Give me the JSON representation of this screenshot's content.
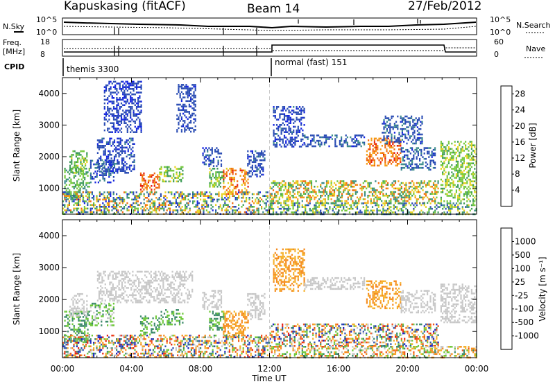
{
  "header": {
    "station": "Kapuskasing (fitACF)",
    "beam": "Beam 14",
    "date": "27/Feb/2012"
  },
  "status_panels": {
    "nsky_label": "N.Sky",
    "nsearch_label": "N.Search",
    "freq_label_1": "Freq.",
    "freq_label_2": "[MHz]",
    "nave_label": "Nave",
    "cpid_label": "CPID",
    "noise_ticks": [
      "10^5",
      "10^0"
    ],
    "freq_ticks": [
      "18",
      "8"
    ],
    "nave_ticks": [
      "60",
      "0"
    ],
    "cpid_modes": [
      {
        "name": "themis 3300",
        "start_hour": 0
      },
      {
        "name": "normal (fast) 151",
        "start_hour": 12
      }
    ]
  },
  "colors": {
    "power": [
      "#1424e0",
      "#2a4cb4",
      "#3c8c8c",
      "#3f9c5a",
      "#74c83c",
      "#e6d21e",
      "#f59a14",
      "#f06a10",
      "#e61e12"
    ],
    "velocity": [
      "#1c24c0",
      "#2e54b0",
      "#3c8a6a",
      "#6ec83a",
      "#c8c8c8",
      "#f5b02a",
      "#f58a1c",
      "#f0541a",
      "#e61e12"
    ],
    "gap_marker": "#c8c8c8"
  },
  "chart_data": [
    {
      "type": "heatmap",
      "name": "power",
      "ylabel": "Slant Range [km]",
      "xlabel": "",
      "x_ticks": [
        "00:00",
        "04:00",
        "08:00",
        "12:00",
        "16:00",
        "20:00",
        "00:00"
      ],
      "y_ticks": [
        1000,
        2000,
        3000,
        4000
      ],
      "ylim": [
        180,
        4500
      ],
      "xlim_hours": [
        0,
        24
      ],
      "colorbar_label": "Power [dB]",
      "colorbar_ticks": [
        "4",
        "8",
        "12",
        "16",
        "20",
        "24",
        "28"
      ],
      "colorbar_range": [
        0,
        30
      ],
      "regions": [
        {
          "t": [
            0.1,
            1.6
          ],
          "r": [
            650,
            1650
          ],
          "v": [
            8,
            16
          ]
        },
        {
          "t": [
            0.4,
            1.4
          ],
          "r": [
            1500,
            2200
          ],
          "v": [
            10,
            18
          ]
        },
        {
          "t": [
            1.6,
            3.0
          ],
          "r": [
            1200,
            1900
          ],
          "v": [
            2,
            9
          ]
        },
        {
          "t": [
            2.0,
            4.2
          ],
          "r": [
            1500,
            2600
          ],
          "v": [
            2,
            7
          ]
        },
        {
          "t": [
            2.4,
            4.6
          ],
          "r": [
            2800,
            4400
          ],
          "v": [
            2,
            6
          ]
        },
        {
          "t": [
            4.5,
            5.6
          ],
          "r": [
            900,
            1500
          ],
          "v": [
            22,
            29
          ]
        },
        {
          "t": [
            5.6,
            7.0
          ],
          "r": [
            1200,
            1700
          ],
          "v": [
            12,
            19
          ]
        },
        {
          "t": [
            6.6,
            7.7
          ],
          "r": [
            2800,
            4300
          ],
          "v": [
            3,
            6
          ]
        },
        {
          "t": [
            8.1,
            9.2
          ],
          "r": [
            1700,
            2300
          ],
          "v": [
            3,
            8
          ]
        },
        {
          "t": [
            8.5,
            9.3
          ],
          "r": [
            1050,
            1650
          ],
          "v": [
            10,
            18
          ]
        },
        {
          "t": [
            9.3,
            10.8
          ],
          "r": [
            850,
            1650
          ],
          "v": [
            18,
            29
          ]
        },
        {
          "t": [
            10.7,
            11.7
          ],
          "r": [
            1400,
            2200
          ],
          "v": [
            3,
            7
          ]
        },
        {
          "t": [
            0.0,
            12.0
          ],
          "r": [
            180,
            900
          ],
          "v": [
            2,
            26
          ]
        },
        {
          "t": [
            12.0,
            21.8
          ],
          "r": [
            550,
            1250
          ],
          "v": [
            8,
            26
          ]
        },
        {
          "t": [
            12.2,
            14.0
          ],
          "r": [
            2300,
            3600
          ],
          "v": [
            2,
            7
          ]
        },
        {
          "t": [
            14.0,
            17.5
          ],
          "r": [
            2350,
            2700
          ],
          "v": [
            3,
            8
          ]
        },
        {
          "t": [
            17.6,
            19.6
          ],
          "r": [
            1700,
            2600
          ],
          "v": [
            20,
            28
          ]
        },
        {
          "t": [
            18.5,
            20.8
          ],
          "r": [
            2400,
            3300
          ],
          "v": [
            3,
            8
          ]
        },
        {
          "t": [
            19.6,
            21.6
          ],
          "r": [
            1600,
            2300
          ],
          "v": [
            3,
            9
          ]
        },
        {
          "t": [
            21.9,
            24.0
          ],
          "r": [
            600,
            2500
          ],
          "v": [
            12,
            18
          ]
        },
        {
          "t": [
            12.0,
            24.0
          ],
          "r": [
            180,
            550
          ],
          "v": [
            4,
            20
          ]
        }
      ]
    },
    {
      "type": "heatmap",
      "name": "velocity",
      "ylabel": "Slant Range [km]",
      "xlabel": "Time UT",
      "x_ticks": [
        "00:00",
        "04:00",
        "08:00",
        "12:00",
        "16:00",
        "20:00",
        "00:00"
      ],
      "y_ticks": [
        1000,
        2000,
        3000,
        4000
      ],
      "ylim": [
        180,
        4500
      ],
      "xlim_hours": [
        0,
        24
      ],
      "colorbar_label": "Velocity [m s⁻¹]",
      "colorbar_ticks": [
        "1000",
        "500",
        "100",
        "25",
        "-25",
        "-100",
        "-500",
        "-1000"
      ],
      "regions": [
        {
          "t": [
            0.1,
            1.6
          ],
          "r": [
            650,
            1650
          ],
          "v": [
            2,
            3
          ]
        },
        {
          "t": [
            0.4,
            1.4
          ],
          "r": [
            1500,
            2200
          ],
          "v": [
            4,
            4
          ]
        },
        {
          "t": [
            1.6,
            3.0
          ],
          "r": [
            1200,
            1900
          ],
          "v": [
            2,
            4
          ]
        },
        {
          "t": [
            2.0,
            7.5
          ],
          "r": [
            1900,
            2900
          ],
          "v": [
            4,
            4
          ]
        },
        {
          "t": [
            4.5,
            5.6
          ],
          "r": [
            900,
            1500
          ],
          "v": [
            2,
            3
          ]
        },
        {
          "t": [
            5.6,
            7.0
          ],
          "r": [
            1200,
            1700
          ],
          "v": [
            2,
            3
          ]
        },
        {
          "t": [
            8.1,
            9.2
          ],
          "r": [
            1700,
            2300
          ],
          "v": [
            4,
            4
          ]
        },
        {
          "t": [
            8.5,
            9.3
          ],
          "r": [
            1050,
            1650
          ],
          "v": [
            2,
            3
          ]
        },
        {
          "t": [
            9.3,
            10.8
          ],
          "r": [
            850,
            1650
          ],
          "v": [
            5,
            6
          ]
        },
        {
          "t": [
            10.7,
            11.7
          ],
          "r": [
            1400,
            2200
          ],
          "v": [
            4,
            4
          ]
        },
        {
          "t": [
            0.0,
            12.0
          ],
          "r": [
            180,
            900
          ],
          "v": [
            0,
            8
          ]
        },
        {
          "t": [
            12.0,
            21.8
          ],
          "r": [
            550,
            1250
          ],
          "v": [
            0,
            8
          ]
        },
        {
          "t": [
            12.2,
            14.0
          ],
          "r": [
            2300,
            3600
          ],
          "v": [
            5,
            6
          ]
        },
        {
          "t": [
            14.0,
            17.5
          ],
          "r": [
            2350,
            2700
          ],
          "v": [
            4,
            4
          ]
        },
        {
          "t": [
            17.6,
            19.6
          ],
          "r": [
            1700,
            2600
          ],
          "v": [
            5,
            6
          ]
        },
        {
          "t": [
            19.6,
            21.6
          ],
          "r": [
            1600,
            2300
          ],
          "v": [
            4,
            4
          ]
        },
        {
          "t": [
            21.9,
            24.0
          ],
          "r": [
            1300,
            2500
          ],
          "v": [
            4,
            4
          ]
        },
        {
          "t": [
            12.0,
            24.0
          ],
          "r": [
            180,
            550
          ],
          "v": [
            2,
            7
          ]
        }
      ]
    }
  ]
}
